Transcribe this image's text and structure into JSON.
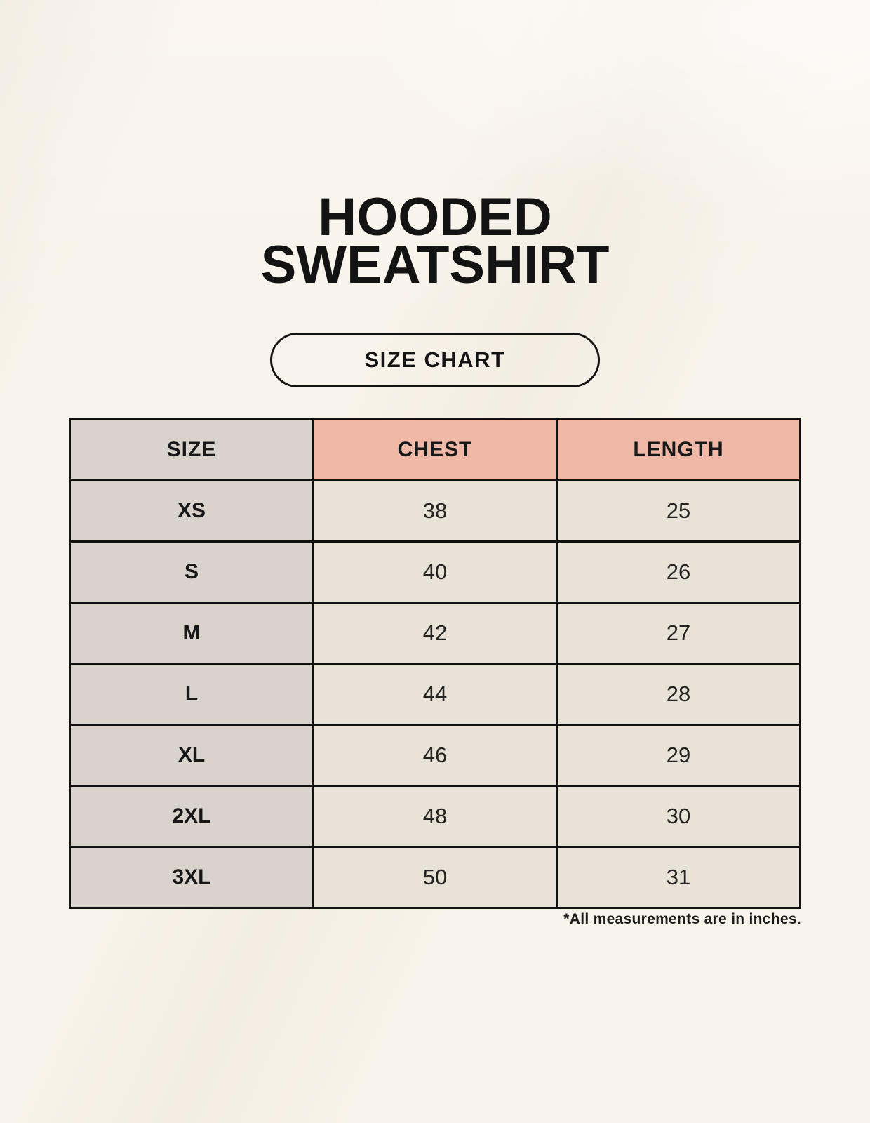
{
  "header": {
    "title_lines": [
      "HOODED",
      "SWEATSHIRT"
    ],
    "badge_label": "SIZE CHART"
  },
  "footnote": "*All measurements are in inches.",
  "colors": {
    "page_background": "#f8f3ea",
    "accent_salmon": "#f0b8a6",
    "neutral_taupe": "#d9d3cc",
    "cell_cream": "#e9e2d7",
    "border_black": "#111111",
    "text_black": "#1c1c1c"
  },
  "chart_data": {
    "type": "table",
    "title": "HOODED SWEATSHIRT",
    "subtitle": "SIZE CHART",
    "columns": [
      "SIZE",
      "CHEST",
      "LENGTH"
    ],
    "rows": [
      [
        "XS",
        "38",
        "25"
      ],
      [
        "S",
        "40",
        "26"
      ],
      [
        "M",
        "42",
        "27"
      ],
      [
        "L",
        "44",
        "28"
      ],
      [
        "XL",
        "46",
        "29"
      ],
      [
        "2XL",
        "48",
        "30"
      ],
      [
        "3XL",
        "50",
        "31"
      ]
    ],
    "units": "inches",
    "notes": "*All measurements are in inches."
  }
}
